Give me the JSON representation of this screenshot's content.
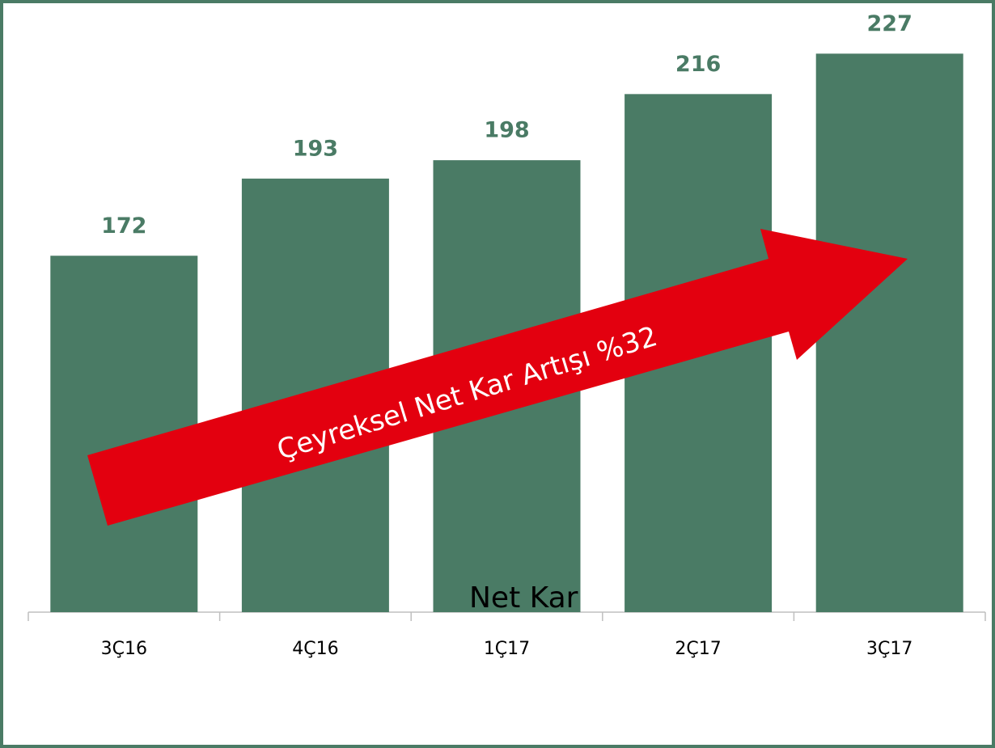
{
  "chart_data": {
    "type": "bar",
    "categories": [
      "3Ç16",
      "4Ç16",
      "1Ç17",
      "2Ç17",
      "3Ç17"
    ],
    "series": [
      {
        "name": "Net Kar",
        "color": "#4a7b65",
        "values": [
          172,
          193,
          198,
          216,
          227
        ]
      }
    ],
    "ylim": [
      75,
      235
    ],
    "annotation": "Çeyreksel Net Kar Artışı %32"
  }
}
